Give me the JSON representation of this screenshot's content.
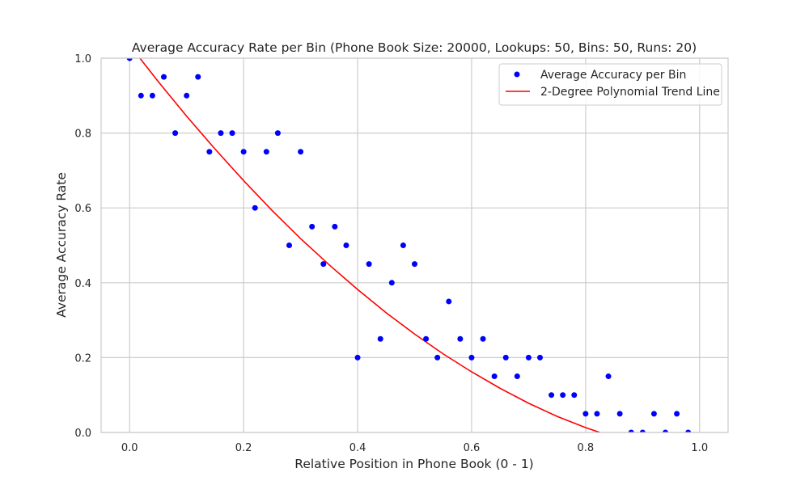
{
  "chart_data": {
    "type": "scatter",
    "title": "Average Accuracy Rate per Bin (Phone Book Size: 20000, Lookups: 50, Bins: 50, Runs: 20)",
    "xlabel": "Relative Position in Phone Book (0 - 1)",
    "ylabel": "Average Accuracy Rate",
    "xlim": [
      -0.05,
      1.05
    ],
    "ylim": [
      0.0,
      1.0
    ],
    "xticks": [
      "0.0",
      "0.2",
      "0.4",
      "0.6",
      "0.8",
      "1.0"
    ],
    "yticks": [
      "0.0",
      "0.2",
      "0.4",
      "0.6",
      "0.8",
      "1.0"
    ],
    "grid": true,
    "legend_position": "top-right",
    "series": [
      {
        "name": "Average Accuracy per Bin",
        "kind": "scatter",
        "color": "#0000ff",
        "x": [
          0.0,
          0.02,
          0.04,
          0.06,
          0.08,
          0.1,
          0.12,
          0.14,
          0.16,
          0.18,
          0.2,
          0.22,
          0.24,
          0.26,
          0.28,
          0.3,
          0.32,
          0.34,
          0.36,
          0.38,
          0.4,
          0.42,
          0.44,
          0.46,
          0.48,
          0.5,
          0.52,
          0.54,
          0.56,
          0.58,
          0.6,
          0.62,
          0.64,
          0.66,
          0.68,
          0.7,
          0.72,
          0.74,
          0.76,
          0.78,
          0.8,
          0.82,
          0.84,
          0.86,
          0.88,
          0.9,
          0.92,
          0.94,
          0.96,
          0.98
        ],
        "y": [
          1.0,
          0.9,
          0.9,
          0.95,
          0.8,
          0.9,
          0.95,
          0.75,
          0.8,
          0.8,
          0.75,
          0.6,
          0.75,
          0.8,
          0.5,
          0.75,
          0.55,
          0.45,
          0.55,
          0.5,
          0.2,
          0.45,
          0.25,
          0.4,
          0.5,
          0.45,
          0.25,
          0.2,
          0.35,
          0.25,
          0.2,
          0.25,
          0.15,
          0.2,
          0.15,
          0.2,
          0.2,
          0.1,
          0.1,
          0.1,
          0.05,
          0.05,
          0.15,
          0.05,
          0.0,
          0.0,
          0.05,
          0.0,
          0.05,
          0.0
        ]
      },
      {
        "name": "2-Degree Polynomial Trend Line",
        "kind": "line",
        "color": "#ff0000",
        "x": [
          0.0,
          0.05,
          0.1,
          0.15,
          0.2,
          0.25,
          0.3,
          0.35,
          0.4,
          0.45,
          0.5,
          0.55,
          0.6,
          0.65,
          0.7,
          0.75,
          0.8,
          0.85,
          0.9,
          0.95,
          0.98
        ],
        "y": [
          1.035,
          0.938,
          0.845,
          0.757,
          0.673,
          0.593,
          0.518,
          0.448,
          0.382,
          0.32,
          0.263,
          0.21,
          0.162,
          0.118,
          0.078,
          0.043,
          0.013,
          -0.013,
          -0.034,
          -0.05,
          -0.058
        ]
      }
    ]
  }
}
